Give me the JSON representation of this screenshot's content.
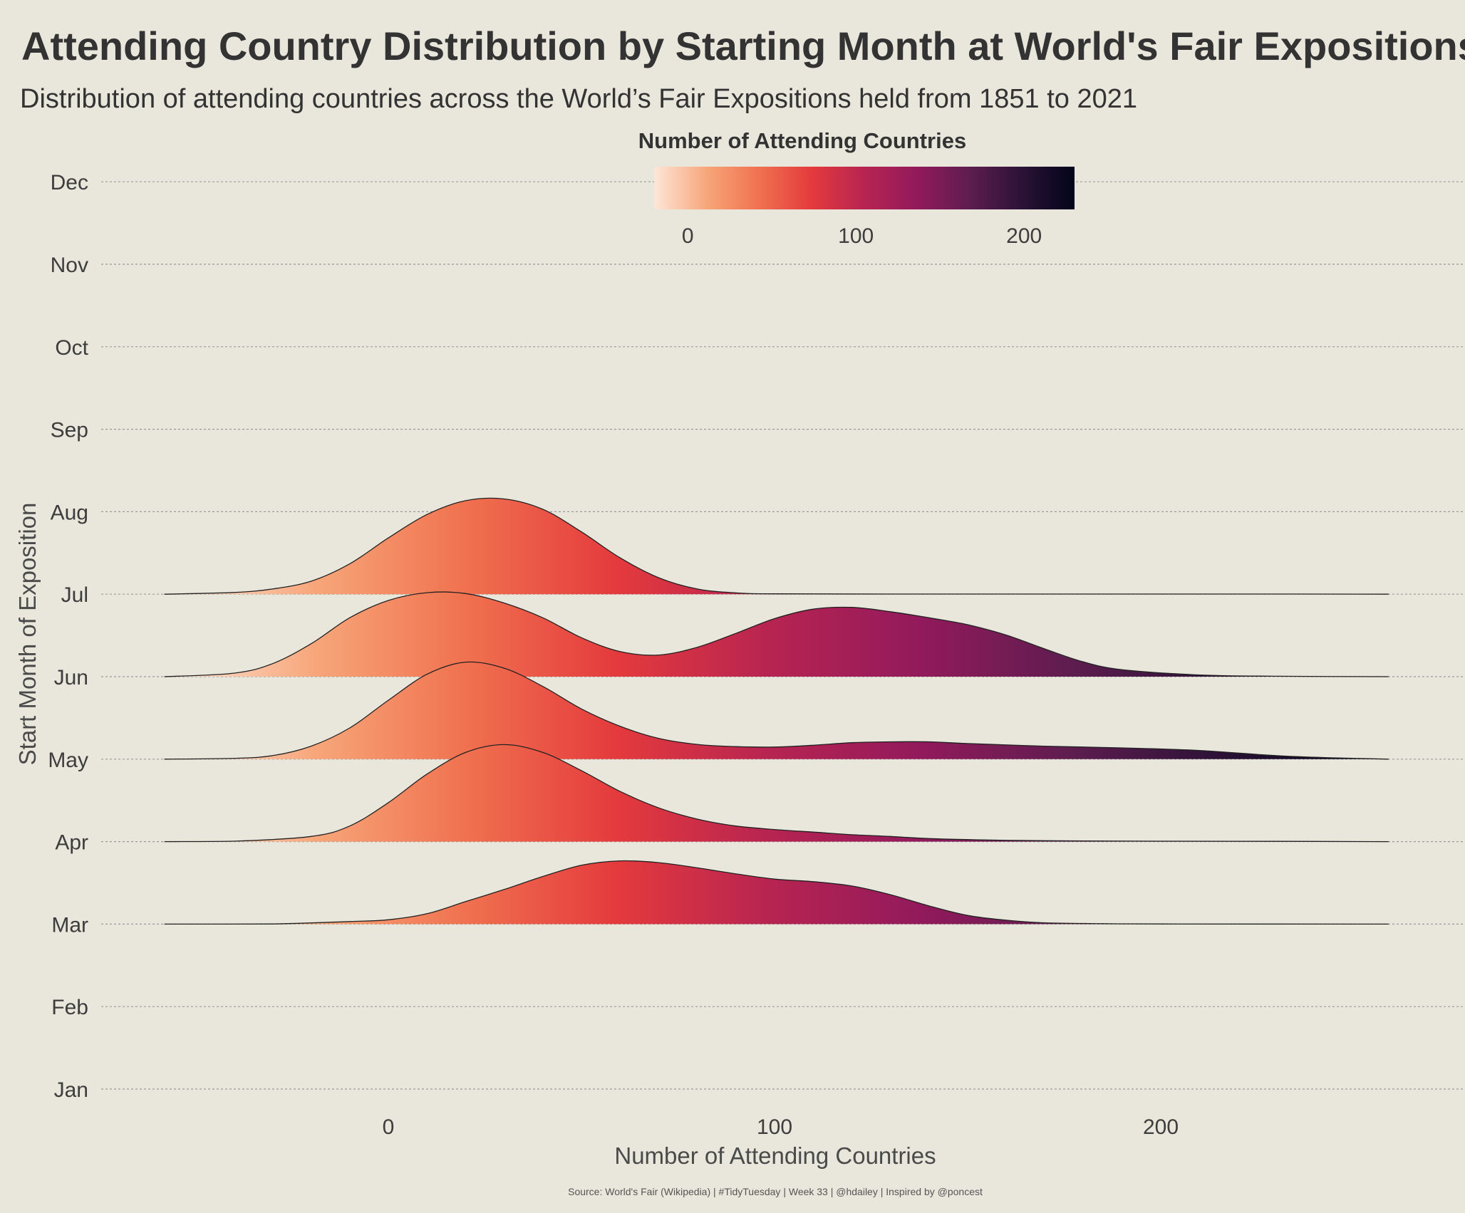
{
  "chart_data": {
    "type": "ridgeline",
    "title": "Attending Country Distribution by Starting Month at World's Fair Expositions",
    "subtitle": "Distribution of attending countries across the World’s Fair Expositions held from 1851  to 2021",
    "xlabel": "Number of Attending Countries",
    "ylabel": "Start Month of Exposition",
    "x_ticks": [
      0,
      100,
      200
    ],
    "xlim": [
      -58,
      259
    ],
    "y_categories": [
      "Jan",
      "Feb",
      "Mar",
      "Apr",
      "May",
      "Jun",
      "Jul",
      "Aug",
      "Sep",
      "Oct",
      "Nov",
      "Dec"
    ],
    "grid": "horizontal dashed",
    "legend": {
      "title": "Number of Attending Countries",
      "position": "top",
      "ticks": [
        0,
        100,
        200
      ],
      "range": [
        -20,
        230
      ]
    },
    "color_scale": {
      "name": "rocket (reversed)",
      "stops": [
        "#fde6d8",
        "#f7a67a",
        "#f0714f",
        "#e43a3d",
        "#b72451",
        "#921a5c",
        "#5e1d4f",
        "#2b1236",
        "#03051a"
      ]
    },
    "caption": "Source: World's Fair (Wikipedia) | #TidyTuesday | Week 33 | @hdailey | Inspired by @poncest",
    "series": [
      {
        "name": "Mar",
        "density_height": [
          [
            -58,
            0
          ],
          [
            -30,
            0.002
          ],
          [
            -10,
            0.03
          ],
          [
            0,
            0.05
          ],
          [
            10,
            0.12
          ],
          [
            20,
            0.26
          ],
          [
            30,
            0.4
          ],
          [
            40,
            0.55
          ],
          [
            50,
            0.68
          ],
          [
            60,
            0.73
          ],
          [
            70,
            0.71
          ],
          [
            80,
            0.65
          ],
          [
            90,
            0.58
          ],
          [
            100,
            0.52
          ],
          [
            110,
            0.49
          ],
          [
            120,
            0.44
          ],
          [
            130,
            0.34
          ],
          [
            140,
            0.21
          ],
          [
            150,
            0.1
          ],
          [
            160,
            0.045
          ],
          [
            170,
            0.015
          ],
          [
            185,
            0.005
          ],
          [
            200,
            0.002
          ],
          [
            259,
            0
          ]
        ]
      },
      {
        "name": "Apr",
        "density_height": [
          [
            -58,
            0
          ],
          [
            -40,
            0.005
          ],
          [
            -20,
            0.06
          ],
          [
            -10,
            0.18
          ],
          [
            0,
            0.45
          ],
          [
            10,
            0.78
          ],
          [
            20,
            1.03
          ],
          [
            30,
            1.12
          ],
          [
            40,
            1.03
          ],
          [
            50,
            0.82
          ],
          [
            60,
            0.58
          ],
          [
            70,
            0.39
          ],
          [
            80,
            0.26
          ],
          [
            90,
            0.18
          ],
          [
            100,
            0.14
          ],
          [
            110,
            0.11
          ],
          [
            120,
            0.08
          ],
          [
            130,
            0.06
          ],
          [
            140,
            0.035
          ],
          [
            160,
            0.015
          ],
          [
            180,
            0.008
          ],
          [
            200,
            0.005
          ],
          [
            230,
            0.003
          ],
          [
            259,
            0
          ]
        ]
      },
      {
        "name": "May",
        "density_height": [
          [
            -58,
            0
          ],
          [
            -40,
            0.01
          ],
          [
            -30,
            0.04
          ],
          [
            -20,
            0.15
          ],
          [
            -10,
            0.36
          ],
          [
            0,
            0.68
          ],
          [
            10,
            0.98
          ],
          [
            20,
            1.12
          ],
          [
            30,
            1.05
          ],
          [
            40,
            0.84
          ],
          [
            50,
            0.58
          ],
          [
            60,
            0.38
          ],
          [
            70,
            0.24
          ],
          [
            80,
            0.17
          ],
          [
            90,
            0.145
          ],
          [
            100,
            0.14
          ],
          [
            110,
            0.16
          ],
          [
            120,
            0.19
          ],
          [
            130,
            0.2
          ],
          [
            140,
            0.2
          ],
          [
            150,
            0.18
          ],
          [
            170,
            0.15
          ],
          [
            190,
            0.13
          ],
          [
            210,
            0.1
          ],
          [
            230,
            0.04
          ],
          [
            245,
            0.015
          ],
          [
            259,
            0
          ]
        ]
      },
      {
        "name": "Jun",
        "density_height": [
          [
            -58,
            0
          ],
          [
            -40,
            0.04
          ],
          [
            -30,
            0.15
          ],
          [
            -20,
            0.38
          ],
          [
            -10,
            0.68
          ],
          [
            0,
            0.88
          ],
          [
            10,
            0.97
          ],
          [
            20,
            0.96
          ],
          [
            30,
            0.85
          ],
          [
            40,
            0.68
          ],
          [
            50,
            0.45
          ],
          [
            60,
            0.29
          ],
          [
            70,
            0.25
          ],
          [
            80,
            0.34
          ],
          [
            90,
            0.5
          ],
          [
            100,
            0.67
          ],
          [
            110,
            0.78
          ],
          [
            120,
            0.8
          ],
          [
            130,
            0.75
          ],
          [
            140,
            0.68
          ],
          [
            150,
            0.6
          ],
          [
            160,
            0.48
          ],
          [
            170,
            0.32
          ],
          [
            180,
            0.17
          ],
          [
            190,
            0.08
          ],
          [
            210,
            0.02
          ],
          [
            230,
            0.005
          ],
          [
            259,
            0
          ]
        ]
      },
      {
        "name": "Jul",
        "density_height": [
          [
            -58,
            0
          ],
          [
            -40,
            0.02
          ],
          [
            -30,
            0.06
          ],
          [
            -20,
            0.15
          ],
          [
            -10,
            0.35
          ],
          [
            0,
            0.65
          ],
          [
            10,
            0.92
          ],
          [
            20,
            1.08
          ],
          [
            30,
            1.1
          ],
          [
            40,
            0.98
          ],
          [
            50,
            0.72
          ],
          [
            60,
            0.42
          ],
          [
            70,
            0.19
          ],
          [
            80,
            0.06
          ],
          [
            90,
            0.015
          ],
          [
            100,
            0.004
          ],
          [
            130,
            0.002
          ],
          [
            160,
            0.002
          ],
          [
            190,
            0.002
          ],
          [
            230,
            0.002
          ],
          [
            259,
            0
          ]
        ]
      }
    ]
  }
}
